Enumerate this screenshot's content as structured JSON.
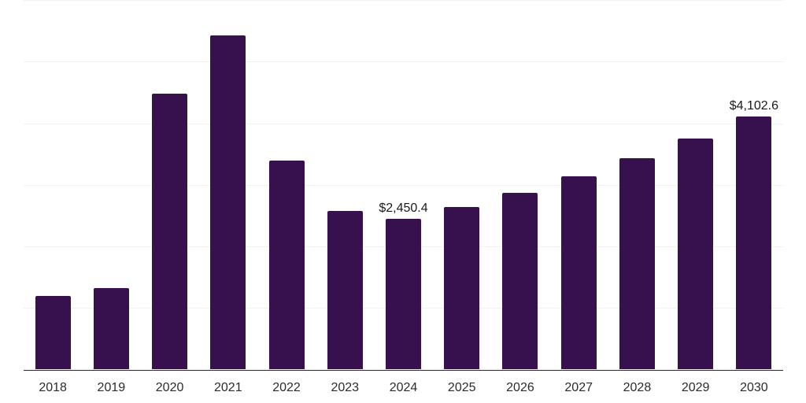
{
  "chart_data": {
    "type": "bar",
    "categories": [
      "2018",
      "2019",
      "2020",
      "2021",
      "2022",
      "2023",
      "2024",
      "2025",
      "2026",
      "2027",
      "2028",
      "2029",
      "2030"
    ],
    "values": [
      1200.0,
      1320.0,
      4480.0,
      5425.0,
      3390.0,
      2580.0,
      2450.4,
      2645.0,
      2870.0,
      3140.0,
      3435.0,
      3745.0,
      4102.6
    ],
    "annotations": [
      {
        "category": "2024",
        "text": "$2,450.4"
      },
      {
        "category": "2030",
        "text": "$4,102.6"
      }
    ],
    "title": "",
    "xlabel": "",
    "ylabel": "",
    "ylim": [
      0,
      6000
    ],
    "grid_step": 1000,
    "grid": "horizontal-light",
    "legend": "none",
    "y_tick_labels_visible": false,
    "bar_color": "#37114D",
    "gridline_color": "#f2f2f2",
    "axis_line_color": "#2e2e2e",
    "data_label_color": "#1a1a1a",
    "tick_label_color": "#2b2b2b"
  }
}
